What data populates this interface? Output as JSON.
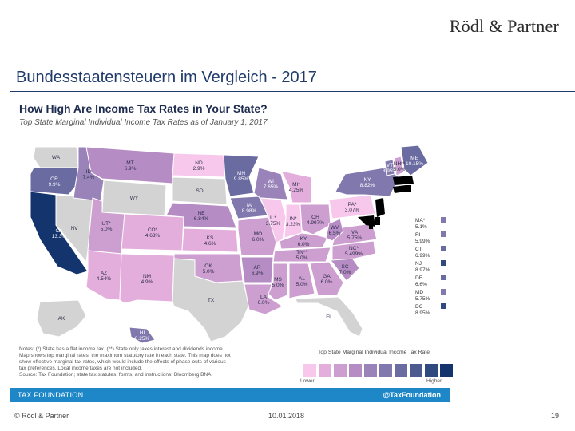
{
  "slide": {
    "brand": "Rödl & Partner",
    "title": "Bundesstaatensteuern im Vergleich - 2017",
    "footer_left": "© Rödl & Partner",
    "footer_date": "10.01.2018",
    "page_number": "19"
  },
  "figure": {
    "title": "How High Are Income Tax Rates in Your State?",
    "subtitle": "Top State Marginal Individual Income Tax Rates as of January 1, 2017",
    "notes": [
      "Notes: (*) State has a flat income tax. (**) State only taxes interest and dividends income.",
      "Map shows top marginal rates: the maximum statutory rate in each state. This map does not",
      "show effective marginal tax rates, which would include the effects of phase-outs of various",
      "tax preferences. Local income taxes are not included.",
      "Source: Tax Foundation; state tax statutes, forms, and instructions; Bloomberg BNA."
    ],
    "legend": {
      "title": "Top State Marginal Individual Income Tax Rate",
      "lower": "Lower",
      "higher": "Higher",
      "colors": [
        "#f7c8ec",
        "#e3aedb",
        "#cd9ed0",
        "#b58dc4",
        "#9a83b9",
        "#8179ad",
        "#6a6ba0",
        "#4d5a8f",
        "#304a80",
        "#14346e"
      ]
    },
    "brand_left": "TAX FOUNDATION",
    "brand_right": "@TaxFoundation"
  },
  "map": {
    "colors": {
      "none": "#d3d3d3",
      "outline": "#ffffff"
    },
    "states": [
      {
        "code": "WA",
        "label": "WA",
        "rate": ""
      },
      {
        "code": "OR",
        "label": "OR",
        "rate": "9.9%"
      },
      {
        "code": "CA",
        "label": "CA",
        "rate": "13.3%"
      },
      {
        "code": "NV",
        "label": "NV",
        "rate": ""
      },
      {
        "code": "ID",
        "label": "ID",
        "rate": "7.4%"
      },
      {
        "code": "MT",
        "label": "MT",
        "rate": "6.9%"
      },
      {
        "code": "WY",
        "label": "WY",
        "rate": ""
      },
      {
        "code": "UT",
        "label": "UT*",
        "rate": "5.0%"
      },
      {
        "code": "AZ",
        "label": "AZ",
        "rate": "4.54%"
      },
      {
        "code": "CO",
        "label": "CO*",
        "rate": "4.63%"
      },
      {
        "code": "NM",
        "label": "NM",
        "rate": "4.9%"
      },
      {
        "code": "ND",
        "label": "ND",
        "rate": "2.9%"
      },
      {
        "code": "SD",
        "label": "SD",
        "rate": ""
      },
      {
        "code": "NE",
        "label": "NE",
        "rate": "6.84%"
      },
      {
        "code": "KS",
        "label": "KS",
        "rate": "4.6%"
      },
      {
        "code": "OK",
        "label": "OK",
        "rate": "5.0%"
      },
      {
        "code": "TX",
        "label": "TX",
        "rate": ""
      },
      {
        "code": "MN",
        "label": "MN",
        "rate": "9.85%"
      },
      {
        "code": "IA",
        "label": "IA",
        "rate": "8.98%"
      },
      {
        "code": "MO",
        "label": "MO",
        "rate": "6.0%"
      },
      {
        "code": "AR",
        "label": "AR",
        "rate": "6.9%"
      },
      {
        "code": "LA",
        "label": "LA",
        "rate": "6.0%"
      },
      {
        "code": "WI",
        "label": "WI",
        "rate": "7.65%"
      },
      {
        "code": "IL",
        "label": "IL*",
        "rate": "3.75%"
      },
      {
        "code": "MI",
        "label": "MI*",
        "rate": "4.25%"
      },
      {
        "code": "IN",
        "label": "IN*",
        "rate": "3.23%"
      },
      {
        "code": "OH",
        "label": "OH",
        "rate": "4.997%"
      },
      {
        "code": "KY",
        "label": "KY",
        "rate": "6.0%"
      },
      {
        "code": "TN",
        "label": "TN**",
        "rate": "5.0%"
      },
      {
        "code": "MS",
        "label": "MS",
        "rate": "5.0%"
      },
      {
        "code": "AL",
        "label": "AL",
        "rate": "5.0%"
      },
      {
        "code": "GA",
        "label": "GA",
        "rate": "6.0%"
      },
      {
        "code": "FL",
        "label": "FL",
        "rate": ""
      },
      {
        "code": "SC",
        "label": "SC",
        "rate": "7.0%"
      },
      {
        "code": "NC",
        "label": "NC*",
        "rate": "5.499%"
      },
      {
        "code": "VA",
        "label": "VA",
        "rate": "5.75%"
      },
      {
        "code": "WV",
        "label": "WV",
        "rate": "6.5%"
      },
      {
        "code": "PA",
        "label": "PA*",
        "rate": "3.07%"
      },
      {
        "code": "NY",
        "label": "NY",
        "rate": "8.82%"
      },
      {
        "code": "VT",
        "label": "VT",
        "rate": "8.95%"
      },
      {
        "code": "NH",
        "label": "NH**",
        "rate": "5.0%"
      },
      {
        "code": "ME",
        "label": "ME",
        "rate": "10.15%"
      },
      {
        "code": "AK",
        "label": "AK",
        "rate": ""
      },
      {
        "code": "HI",
        "label": "HI",
        "rate": "8.25%"
      }
    ],
    "side_labels": [
      {
        "label": "MA*",
        "rate": "5.1%"
      },
      {
        "label": "RI",
        "rate": "5.99%"
      },
      {
        "label": "CT",
        "rate": "6.99%"
      },
      {
        "label": "NJ",
        "rate": "8.97%"
      },
      {
        "label": "DE",
        "rate": "6.6%"
      },
      {
        "label": "MD",
        "rate": "5.75%"
      },
      {
        "label": "DC",
        "rate": "8.95%"
      }
    ]
  }
}
